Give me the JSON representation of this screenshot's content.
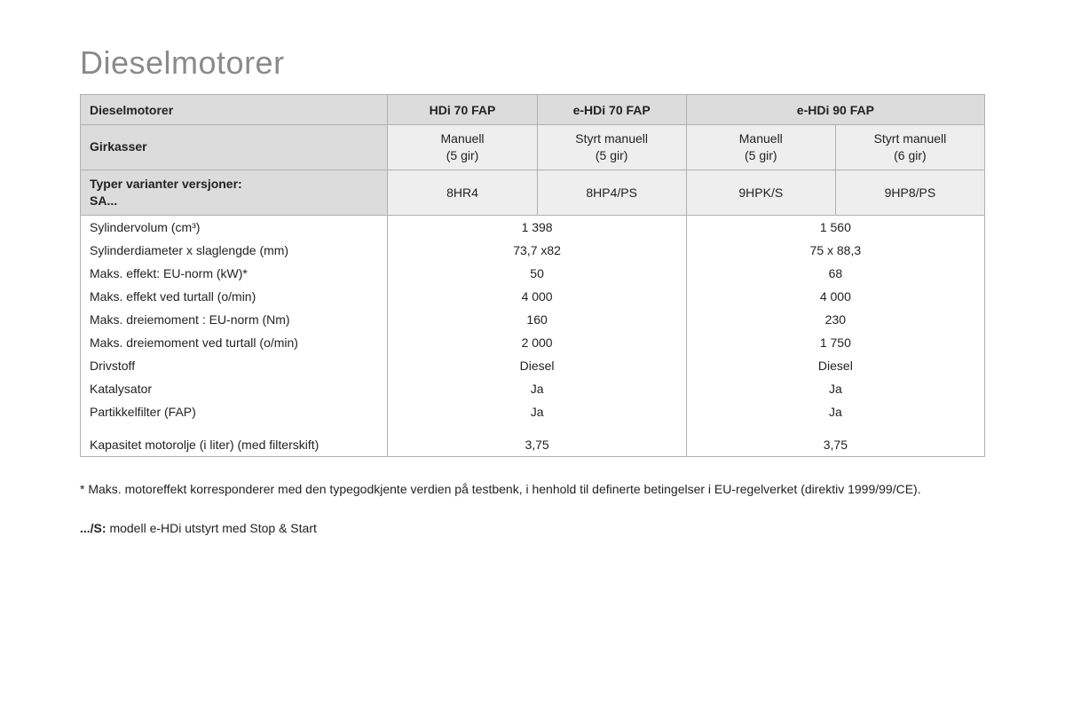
{
  "title": "Dieselmotorer",
  "colors": {
    "title_color": "#8a8a8a",
    "header_bg": "#dcdcdc",
    "subhead_bg": "#eeeeee",
    "border": "#b0b0b0",
    "text": "#222222",
    "background": "#ffffff"
  },
  "fonts": {
    "title_size_pt": 27,
    "body_size_pt": 10.5,
    "family": "Arial"
  },
  "table": {
    "columns": [
      "Dieselmotorer",
      "HDi 70 FAP",
      "e-HDi 70 FAP",
      "e-HDi 90 FAP",
      "e-HDi 90 FAP"
    ],
    "header_spans": {
      "e-HDi 90 FAP": 2
    },
    "girkasser_label": "Girkasser",
    "girkasser": [
      {
        "line1": "Manuell",
        "line2": "(5 gir)"
      },
      {
        "line1": "Styrt manuell",
        "line2": "(5 gir)"
      },
      {
        "line1": "Manuell",
        "line2": "(5 gir)"
      },
      {
        "line1": "Styrt manuell",
        "line2": "(6 gir)"
      }
    ],
    "variants_label_l1": "Typer varianter versjoner:",
    "variants_label_l2": "SA...",
    "variants": [
      "8HR4",
      "8HP4/PS",
      "9HPK/S",
      "9HP8/PS"
    ],
    "rows": [
      {
        "label_html": "Sylindervolum (cm³)",
        "v1": "1 398",
        "v2": "1 560"
      },
      {
        "label_html": "Sylinderdiameter x slaglengde (mm)",
        "v1": "73,7 x82",
        "v2": "75 x 88,3"
      },
      {
        "label_html": "Maks. effekt: EU-norm (kW)*",
        "v1": "50",
        "v2": "68"
      },
      {
        "label_html": "Maks. effekt ved turtall (o/min)",
        "v1": "4 000",
        "v2": "4 000"
      },
      {
        "label_html": "Maks. dreiemoment : EU-norm (Nm)",
        "v1": "160",
        "v2": "230"
      },
      {
        "label_html": "Maks. dreiemoment ved turtall (o/min)",
        "v1": "2 000",
        "v2": "1 750"
      },
      {
        "label_html": "Drivstoff",
        "v1": "Diesel",
        "v2": "Diesel"
      },
      {
        "label_html": "Katalysator",
        "v1": "Ja",
        "v2": "Ja"
      },
      {
        "label_html": "Partikkelfilter (FAP)",
        "v1": "Ja",
        "v2": "Ja"
      },
      {
        "label_html": "Kapasitet motorolje (i liter) (med filterskift)",
        "v1": "3,75",
        "v2": "3,75",
        "spacer": true
      }
    ]
  },
  "notes": {
    "note1": "* Maks. motoreffekt korresponderer med den typegodkjente verdien på testbenk, i henhold til definerte betingelser i EU-regelverket (direktiv 1999/99/CE).",
    "note2_prefix": ".../S:",
    "note2_rest": " modell e-HDi utstyrt med Stop & Start"
  }
}
